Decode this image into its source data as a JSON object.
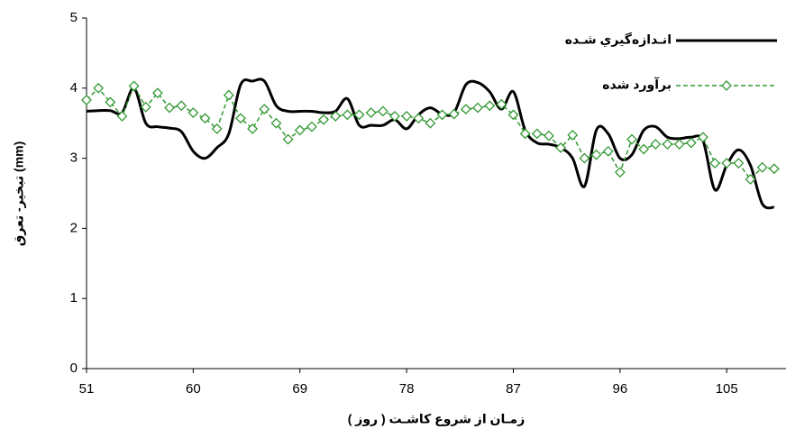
{
  "chart_data": {
    "type": "line",
    "x_label": "زمـان از شروع كاشـت ( روز )",
    "y_label": "تبخیر- تعرق (mm)",
    "x": [
      51,
      52,
      53,
      54,
      55,
      56,
      57,
      58,
      59,
      60,
      61,
      62,
      63,
      64,
      65,
      66,
      67,
      68,
      69,
      70,
      71,
      72,
      73,
      74,
      75,
      76,
      77,
      78,
      79,
      80,
      81,
      82,
      83,
      84,
      85,
      86,
      87,
      88,
      89,
      90,
      91,
      92,
      93,
      94,
      95,
      96,
      97,
      98,
      99,
      100,
      101,
      102,
      103,
      104,
      105,
      106,
      107,
      108,
      109
    ],
    "xlim": [
      51,
      110
    ],
    "xticks": [
      51,
      60,
      69,
      78,
      87,
      96,
      105
    ],
    "ylim": [
      0,
      5
    ],
    "yticks": [
      0,
      1,
      2,
      3,
      4,
      5
    ],
    "legend": "upper right",
    "series": [
      {
        "name": "انـدازه‌گيري شـده",
        "color": "#000000",
        "style": "solid",
        "values": [
          3.67,
          3.68,
          3.68,
          3.65,
          4.0,
          3.5,
          3.45,
          3.43,
          3.38,
          3.1,
          3.0,
          3.15,
          3.35,
          4.05,
          4.1,
          4.1,
          3.75,
          3.67,
          3.67,
          3.67,
          3.65,
          3.67,
          3.85,
          3.47,
          3.47,
          3.47,
          3.55,
          3.42,
          3.62,
          3.72,
          3.63,
          3.65,
          4.05,
          4.08,
          3.95,
          3.7,
          3.95,
          3.4,
          3.22,
          3.2,
          3.15,
          3.0,
          2.6,
          3.4,
          3.35,
          3.0,
          3.05,
          3.4,
          3.45,
          3.3,
          3.28,
          3.3,
          3.25,
          2.55,
          2.9,
          3.12,
          2.9,
          2.35,
          2.3
        ]
      },
      {
        "name": "برآورد شده",
        "color": "#339933",
        "style": "dashed",
        "values": [
          3.83,
          4.0,
          3.8,
          3.6,
          4.03,
          3.73,
          3.93,
          3.72,
          3.75,
          3.65,
          3.57,
          3.42,
          3.9,
          3.57,
          3.42,
          3.7,
          3.5,
          3.27,
          3.4,
          3.45,
          3.55,
          3.6,
          3.62,
          3.62,
          3.65,
          3.67,
          3.6,
          3.6,
          3.57,
          3.5,
          3.62,
          3.63,
          3.7,
          3.72,
          3.75,
          3.77,
          3.62,
          3.35,
          3.35,
          3.32,
          3.15,
          3.33,
          3.0,
          3.05,
          3.1,
          2.8,
          3.27,
          3.13,
          3.2,
          3.2,
          3.2,
          3.22,
          3.3,
          2.93,
          2.93,
          2.93,
          2.7,
          2.87,
          2.85
        ]
      }
    ]
  }
}
